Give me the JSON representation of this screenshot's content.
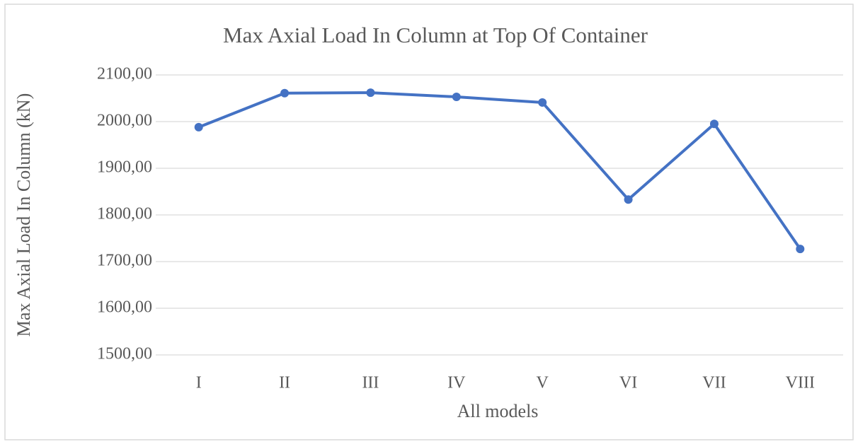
{
  "chart_data": {
    "type": "line",
    "title": "Max Axial Load In Column at Top Of Container",
    "x_label": "All models",
    "y_label": "Max Axial Load In Column (kN)",
    "categories": [
      "I",
      "II",
      "III",
      "IV",
      "V",
      "VI",
      "VII",
      "VIII"
    ],
    "series": [
      {
        "name": "Max Axial Load In Column",
        "color": "#4472c4",
        "values": [
          1988,
          2061,
          2062,
          2053,
          2041,
          1833,
          1995,
          1727
        ]
      }
    ],
    "ylim": [
      1500,
      2100
    ],
    "yticks": [
      {
        "value": 1500,
        "label": "1500,00"
      },
      {
        "value": 1600,
        "label": "1600,00"
      },
      {
        "value": 1700,
        "label": "1700,00"
      },
      {
        "value": 1800,
        "label": "1800,00"
      },
      {
        "value": 1900,
        "label": "1900,00"
      },
      {
        "value": 2000,
        "label": "2000,00"
      },
      {
        "value": 2100,
        "label": "2100,00"
      }
    ],
    "grid": true
  }
}
